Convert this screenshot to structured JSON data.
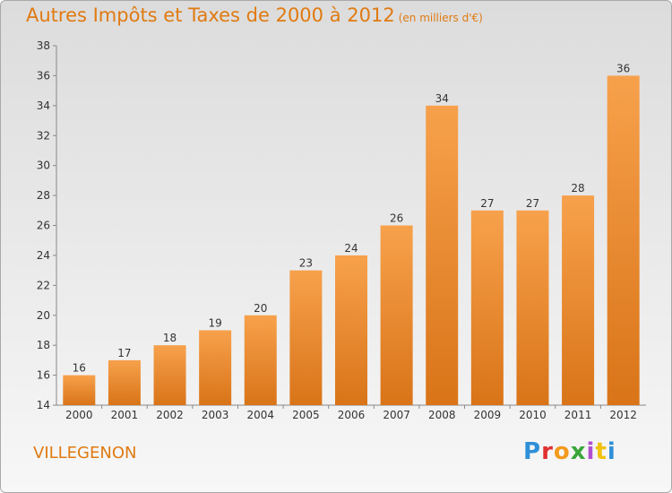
{
  "header": {
    "title": "Autres Impôts et Taxes de 2000 à 2012",
    "unit": "(en milliers d'€)"
  },
  "footer": {
    "place": "VILLEGENON",
    "logo_letters": [
      "P",
      "r",
      "o",
      "x",
      "i",
      "t",
      "i"
    ]
  },
  "colors": {
    "accent": "#e07a10",
    "bar_top": "#f7a14c",
    "bar_bottom": "#d97418"
  },
  "chart_data": {
    "type": "bar",
    "title": "Autres Impôts et Taxes de 2000 à 2012",
    "xlabel": "",
    "ylabel": "",
    "categories": [
      "2000",
      "2001",
      "2002",
      "2003",
      "2004",
      "2005",
      "2006",
      "2007",
      "2008",
      "2009",
      "2010",
      "2011",
      "2012"
    ],
    "values": [
      16,
      17,
      18,
      19,
      20,
      23,
      24,
      26,
      34,
      27,
      27,
      28,
      36
    ],
    "ylim": [
      14,
      38
    ],
    "yticks": [
      14,
      16,
      18,
      20,
      22,
      24,
      26,
      28,
      30,
      32,
      34,
      36,
      38
    ],
    "grid": false,
    "data_labels": true
  }
}
